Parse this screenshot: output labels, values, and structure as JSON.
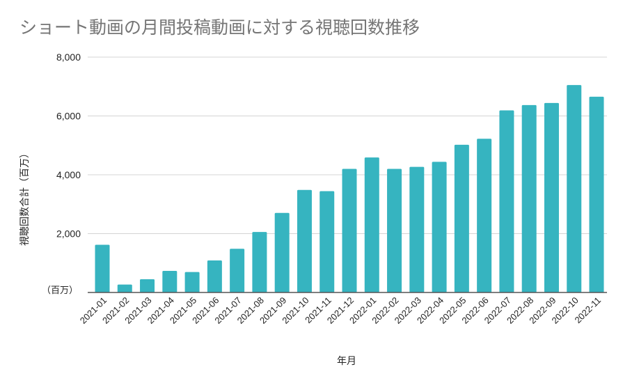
{
  "chart_data": {
    "type": "bar",
    "title": "ショート動画の月間投稿動画に対する視聴回数推移",
    "xlabel": "年月",
    "ylabel": "視聴回数合計（百万）",
    "unit_label": "（百万）",
    "ylim": [
      0,
      8000
    ],
    "yticks": [
      "8,000",
      "6,000",
      "4,000",
      "2,000"
    ],
    "ytick_values": [
      8000,
      6000,
      4000,
      2000
    ],
    "grid": true,
    "color": "#36b4c0",
    "categories": [
      "2021-01",
      "2021-02",
      "2021-03",
      "2021-04",
      "2021-05",
      "2021-06",
      "2021-07",
      "2021-08",
      "2021-09",
      "2021-10",
      "2021-11",
      "2021-12",
      "2022-01",
      "2022-02",
      "2022-03",
      "2022-04",
      "2022-05",
      "2022-06",
      "2022-07",
      "2022-08",
      "2022-09",
      "2022-10",
      "2022-11"
    ],
    "values": [
      1620,
      270,
      450,
      735,
      695,
      1090,
      1485,
      2055,
      2705,
      3485,
      3445,
      4200,
      4590,
      4200,
      4270,
      4440,
      5020,
      5225,
      6190,
      6370,
      6440,
      7050,
      6655
    ]
  }
}
